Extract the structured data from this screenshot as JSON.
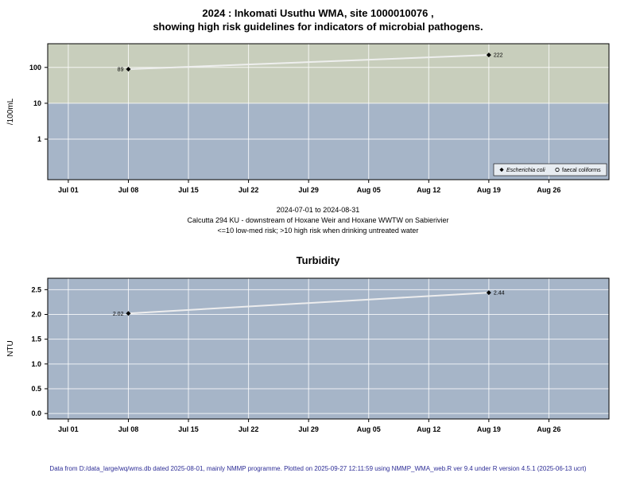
{
  "captions": {
    "date_range": "2024-07-01 to 2024-08-31",
    "site_description": "Calcutta 294 KU - downstream of Hoxane Weir and Hoxane WWTW on Sabierivier",
    "risk_note": "<=10 low-med risk; >10 high risk when drinking untreated water"
  },
  "footer": "Data from D:/data_large/wq/wms.db dated 2025-08-01, mainly NMMP programme. Plotted on 2025-09-27 12:11:59 using NMMP_WMA_web.R ver 9.4 under R version 4.5.1 (2025-06-13 ucrt)",
  "colors": {
    "high_risk_band": "#c8cebc",
    "plot_background": "#a6b5c8",
    "gridline": "#ffffff",
    "data_line": "#f0f0f0",
    "marker": "#000000",
    "footer_text": "#2d2d96"
  },
  "chart_data": [
    {
      "type": "line",
      "title_lines": [
        "2024 : Inkomati Usuthu WMA, site 1000010076 ,",
        "showing high risk guidelines for indicators of microbial pathogens."
      ],
      "ylabel": "/100mL",
      "y_scale": "log10",
      "ylim": [
        -1.13,
        2.66
      ],
      "y_ticks": [
        1,
        10,
        100
      ],
      "y_tick_labels": [
        "1",
        "10",
        "100"
      ],
      "xlim_days": [
        -2.4,
        63.0
      ],
      "x_ticks": [
        {
          "label": "Jul 01",
          "day": 0
        },
        {
          "label": "Jul 08",
          "day": 7
        },
        {
          "label": "Jul 15",
          "day": 14
        },
        {
          "label": "Jul 22",
          "day": 21
        },
        {
          "label": "Jul 29",
          "day": 28
        },
        {
          "label": "Aug 05",
          "day": 35
        },
        {
          "label": "Aug 12",
          "day": 42
        },
        {
          "label": "Aug 19",
          "day": 49
        },
        {
          "label": "Aug 26",
          "day": 56
        }
      ],
      "plot_bg": "#a6b5c8",
      "bands": [
        {
          "above": 10,
          "color": "#c8cebc",
          "meaning": "high risk region (>10 /100mL)"
        }
      ],
      "grid_color": "#ffffff",
      "line_color": "#f0f0f0",
      "series": [
        {
          "name": "Escherichia coli",
          "marker": "diamond-filled",
          "points": [
            {
              "x_label": "Jul 08",
              "x_day": 7,
              "y": 89,
              "label": "89",
              "label_side": "left"
            },
            {
              "x_label": "Aug 19",
              "x_day": 49,
              "y": 222,
              "label": "222",
              "label_side": "right"
            }
          ]
        },
        {
          "name": "faecal coliforms",
          "marker": "circle-open",
          "points": []
        }
      ],
      "legend": {
        "position": "bottom-right",
        "entries": [
          {
            "label": "Escherichia coli",
            "marker": "diamond-filled",
            "italic": true
          },
          {
            "label": "faecal coliforms",
            "marker": "circle-open",
            "italic": false
          }
        ]
      }
    },
    {
      "type": "line",
      "title": "Turbidity",
      "ylabel": "NTU",
      "y_scale": "linear",
      "ylim": [
        -0.11,
        2.73
      ],
      "y_ticks": [
        0,
        0.5,
        1,
        1.5,
        2,
        2.5
      ],
      "y_tick_labels": [
        "0.0",
        "0.5",
        "1.0",
        "1.5",
        "2.0",
        "2.5"
      ],
      "xlim_days": [
        -2.4,
        63.0
      ],
      "x_ticks": [
        {
          "label": "Jul 01",
          "day": 0
        },
        {
          "label": "Jul 08",
          "day": 7
        },
        {
          "label": "Jul 15",
          "day": 14
        },
        {
          "label": "Jul 22",
          "day": 21
        },
        {
          "label": "Jul 29",
          "day": 28
        },
        {
          "label": "Aug 05",
          "day": 35
        },
        {
          "label": "Aug 12",
          "day": 42
        },
        {
          "label": "Aug 19",
          "day": 49
        },
        {
          "label": "Aug 26",
          "day": 56
        }
      ],
      "plot_bg": "#a6b5c8",
      "bands": [],
      "grid_color": "#ffffff",
      "line_color": "#f0f0f0",
      "series": [
        {
          "name": "Turbidity",
          "marker": "diamond-filled",
          "points": [
            {
              "x_label": "Jul 08",
              "x_day": 7,
              "y": 2.02,
              "label": "2.02",
              "label_side": "left"
            },
            {
              "x_label": "Aug 19",
              "x_day": 49,
              "y": 2.44,
              "label": "2.44",
              "label_side": "right"
            }
          ]
        }
      ],
      "legend": null
    }
  ]
}
